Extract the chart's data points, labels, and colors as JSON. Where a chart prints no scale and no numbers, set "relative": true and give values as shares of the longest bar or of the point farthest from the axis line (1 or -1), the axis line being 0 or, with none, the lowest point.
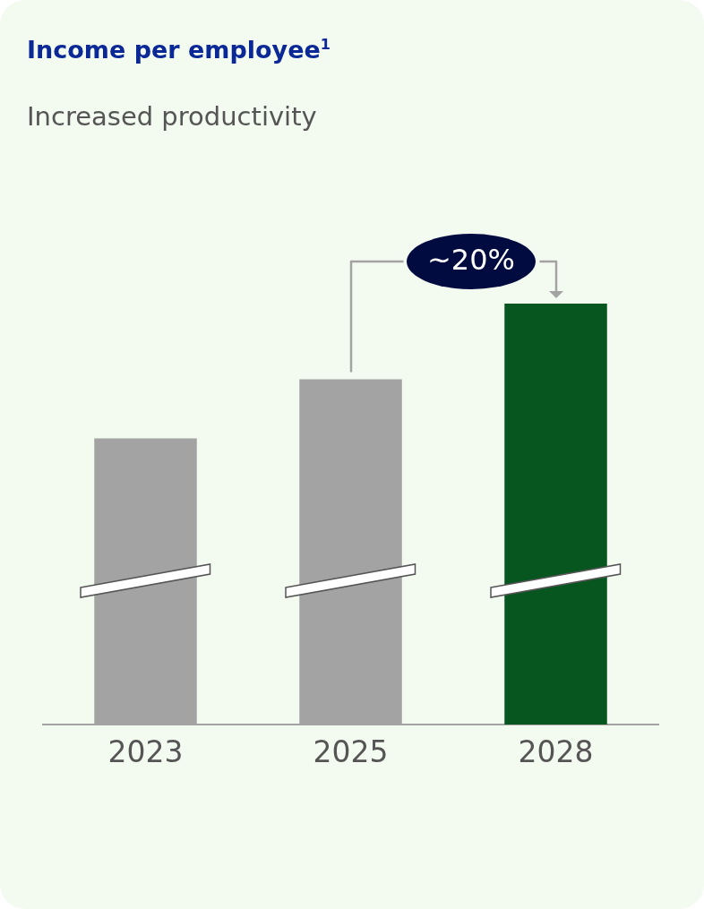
{
  "chart_data": {
    "type": "bar",
    "title": "Income per employee$^{1}$",
    "subtitle": "Increased productivity",
    "categories": [
      "2023",
      "2025",
      "2028"
    ],
    "values": [
      0.68,
      0.82,
      1
    ],
    "colors": [
      "#a3a3a3",
      "#a3a3a3",
      "#07561f"
    ],
    "relative": true,
    "grid": false,
    "legend": false,
    "annotations": [
      {
        "text": "~20%",
        "x": "2028",
        "y": 1
      }
    ]
  }
}
